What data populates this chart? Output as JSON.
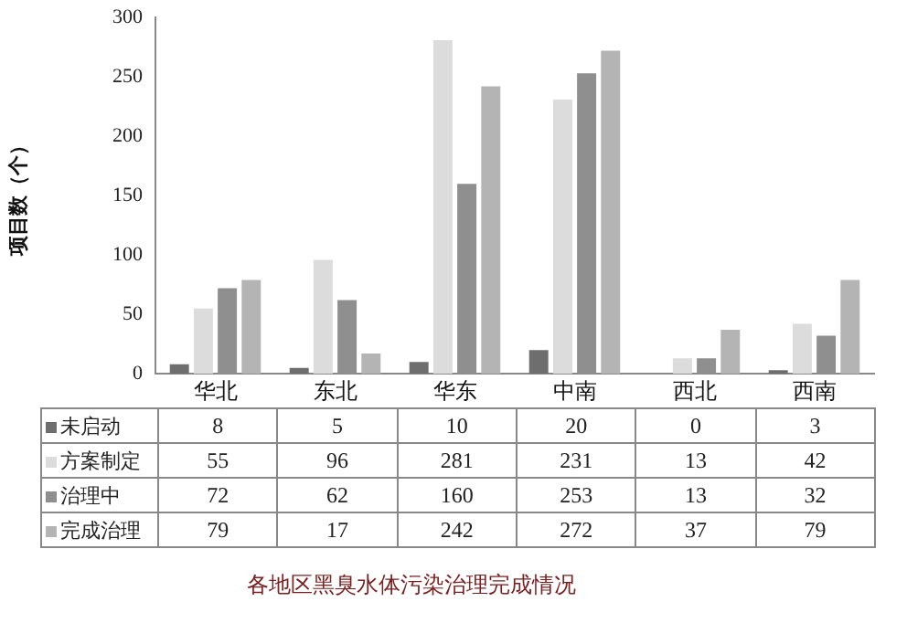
{
  "chart_data": {
    "type": "bar",
    "title": "各地区黑臭水体污染治理完成情况",
    "ylabel": "项目数（个）",
    "categories": [
      "华北",
      "东北",
      "华东",
      "中南",
      "西北",
      "西南"
    ],
    "series": [
      {
        "name": "未启动",
        "color": "#6e6e6e",
        "values": [
          8,
          5,
          10,
          20,
          0,
          3
        ]
      },
      {
        "name": "方案制定",
        "color": "#dcdcdc",
        "values": [
          55,
          96,
          281,
          231,
          13,
          42
        ]
      },
      {
        "name": "治理中",
        "color": "#8f8f8f",
        "values": [
          72,
          62,
          160,
          253,
          13,
          32
        ]
      },
      {
        "name": "完成治理",
        "color": "#b4b4b4",
        "values": [
          79,
          17,
          242,
          272,
          37,
          79
        ]
      }
    ],
    "ylim": [
      0,
      300
    ],
    "yticks": [
      0,
      50,
      100,
      150,
      200,
      250,
      300
    ],
    "grid": false,
    "legend": "bottom",
    "data_labels": true
  }
}
